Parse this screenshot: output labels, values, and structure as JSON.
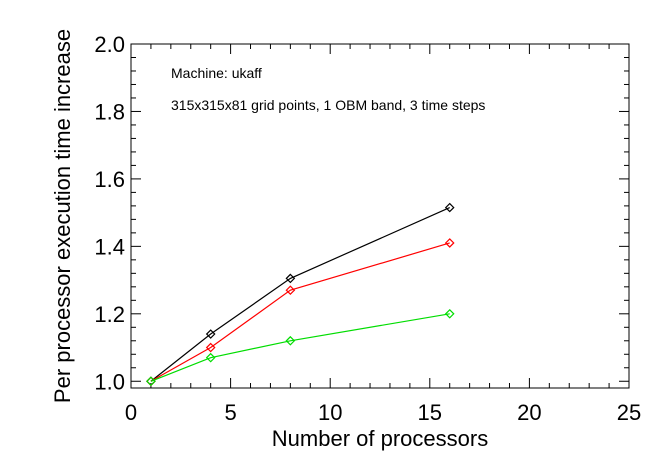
{
  "chart_data": {
    "type": "line",
    "xlabel": "Number of processors",
    "ylabel": "Per processor execution time increase",
    "xlim": [
      0,
      25
    ],
    "ylim": [
      0.98,
      2.0
    ],
    "xticks": [
      0,
      5,
      10,
      15,
      20,
      25
    ],
    "yticks": [
      1.0,
      1.2,
      1.4,
      1.6,
      1.8,
      2.0
    ],
    "xtick_labels": [
      "0",
      "5",
      "10",
      "15",
      "20",
      "25"
    ],
    "ytick_labels": [
      "1.0",
      "1.2",
      "1.4",
      "1.6",
      "1.8",
      "2.0"
    ],
    "annotations": [
      "Machine: ukaff",
      "315x315x81 grid points, 1 OBM band, 3 time steps"
    ],
    "x": [
      1,
      4,
      8,
      16
    ],
    "series": [
      {
        "color": "#000000",
        "marker": "diamond",
        "values": [
          1.0,
          1.14,
          1.305,
          1.515
        ]
      },
      {
        "color": "#ff0000",
        "marker": "diamond",
        "values": [
          1.0,
          1.1,
          1.27,
          1.41
        ]
      },
      {
        "color": "#00dd00",
        "marker": "diamond",
        "values": [
          1.0,
          1.07,
          1.12,
          1.2
        ]
      }
    ],
    "grid": false,
    "legend": "none"
  }
}
